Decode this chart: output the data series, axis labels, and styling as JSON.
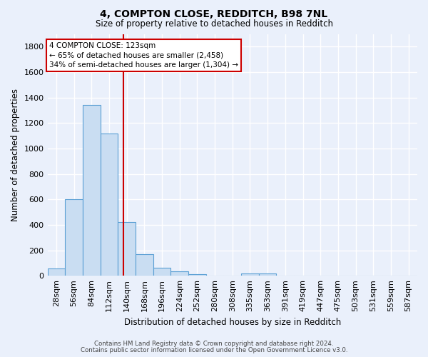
{
  "title1": "4, COMPTON CLOSE, REDDITCH, B98 7NL",
  "title2": "Size of property relative to detached houses in Redditch",
  "xlabel": "Distribution of detached houses by size in Redditch",
  "ylabel": "Number of detached properties",
  "footer1": "Contains HM Land Registry data © Crown copyright and database right 2024.",
  "footer2": "Contains public sector information licensed under the Open Government Licence v3.0.",
  "bin_labels": [
    "28sqm",
    "56sqm",
    "84sqm",
    "112sqm",
    "140sqm",
    "168sqm",
    "196sqm",
    "224sqm",
    "252sqm",
    "280sqm",
    "308sqm",
    "335sqm",
    "363sqm",
    "391sqm",
    "419sqm",
    "447sqm",
    "475sqm",
    "503sqm",
    "531sqm",
    "559sqm",
    "587sqm"
  ],
  "bar_values": [
    55,
    600,
    1340,
    1120,
    420,
    170,
    60,
    35,
    15,
    0,
    0,
    20,
    20,
    0,
    0,
    0,
    0,
    0,
    0,
    0,
    0
  ],
  "bar_color": "#c9ddf2",
  "bar_edge_color": "#5a9fd4",
  "ylim": [
    0,
    1900
  ],
  "yticks": [
    0,
    200,
    400,
    600,
    800,
    1000,
    1200,
    1400,
    1600,
    1800
  ],
  "vline_x": 3.82,
  "vline_color": "#cc0000",
  "annotation_line1": "4 COMPTON CLOSE: 123sqm",
  "annotation_line2": "← 65% of detached houses are smaller (2,458)",
  "annotation_line3": "34% of semi-detached houses are larger (1,304) →",
  "annotation_box_color": "white",
  "annotation_box_edge": "#cc0000",
  "bg_color": "#eaf0fb",
  "grid_color": "#ffffff",
  "title1_fontsize": 10,
  "title2_fontsize": 8.5,
  "xlabel_fontsize": 8.5,
  "ylabel_fontsize": 8.5,
  "tick_fontsize": 8,
  "annot_fontsize": 7.5,
  "footer_fontsize": 6.2
}
